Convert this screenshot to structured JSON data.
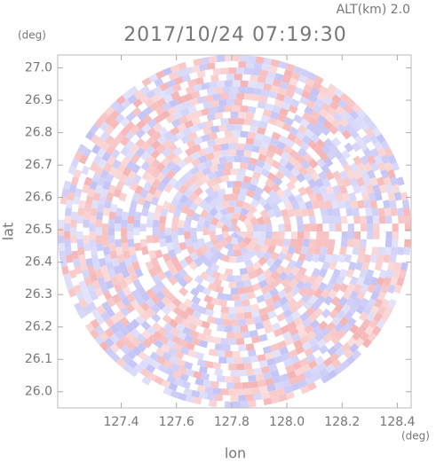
{
  "chart_data": {
    "type": "ppi",
    "title": "2017/10/24 07:19:30",
    "subtitle": "ALT(km) 2.0",
    "xlabel": "lon",
    "ylabel": "lat",
    "xunit": "(deg)",
    "yunit": "(deg)",
    "xlim": [
      127.17,
      128.45
    ],
    "ylim": [
      25.95,
      27.04
    ],
    "xticks": [
      127.4,
      127.6,
      127.8,
      {
        "value": 128,
        "label": "128.0"
      },
      128.2,
      128.4
    ],
    "yticks": [
      {
        "value": 26,
        "label": "26.0"
      },
      26.1,
      26.2,
      26.3,
      26.4,
      26.5,
      26.6,
      26.7,
      26.8,
      26.9,
      {
        "value": 27,
        "label": "27.0"
      }
    ],
    "colors": [
      "#f6b4b4",
      "#c2c2f6"
    ]
  }
}
